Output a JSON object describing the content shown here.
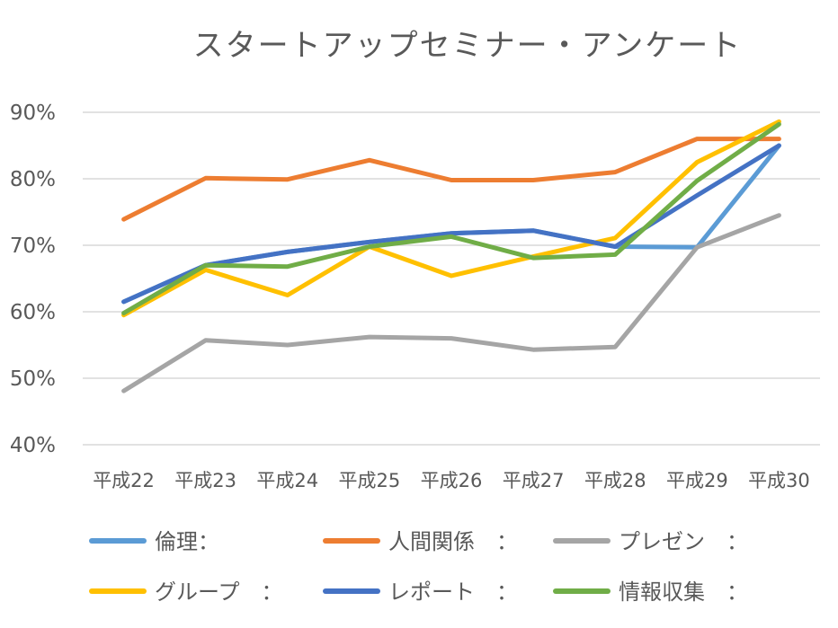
{
  "chart_data": {
    "type": "line",
    "title": "スタートアップセミナー・アンケート",
    "xlabel": "",
    "ylabel": "",
    "categories": [
      "平成22",
      "平成23",
      "平成24",
      "平成25",
      "平成26",
      "平成27",
      "平成28",
      "平成29",
      "平成30"
    ],
    "ylim": [
      0.4,
      0.9
    ],
    "yticks": [
      "40%",
      "50%",
      "60%",
      "70%",
      "80%",
      "90%"
    ],
    "grid": true,
    "legend_position": "bottom",
    "series": [
      {
        "name": "倫理",
        "legend_label": "倫理：",
        "color": "#5b9bd5",
        "values": [
          0.615,
          0.67,
          0.69,
          0.705,
          0.718,
          0.722,
          0.698,
          0.697,
          0.85
        ]
      },
      {
        "name": "人間関係",
        "legend_label": "人間関係　：",
        "color": "#ed7d31",
        "values": [
          0.739,
          0.801,
          0.799,
          0.828,
          0.798,
          0.798,
          0.81,
          0.86,
          0.86
        ]
      },
      {
        "name": "プレゼン",
        "legend_label": "プレゼン　：",
        "color": "#a5a5a5",
        "values": [
          0.481,
          0.557,
          0.55,
          0.562,
          0.56,
          0.543,
          0.547,
          0.697,
          0.745
        ]
      },
      {
        "name": "グループ",
        "legend_label": "グループ　：",
        "color": "#ffc000",
        "values": [
          0.595,
          0.663,
          0.625,
          0.698,
          0.654,
          0.683,
          0.711,
          0.825,
          0.886
        ]
      },
      {
        "name": "レポート",
        "legend_label": "レポート　：",
        "color": "#4472c4",
        "values": [
          0.615,
          0.67,
          0.69,
          0.705,
          0.718,
          0.722,
          0.698,
          0.775,
          0.85
        ]
      },
      {
        "name": "情報収集",
        "legend_label": "情報収集　：",
        "color": "#70ad47",
        "values": [
          0.598,
          0.67,
          0.668,
          0.698,
          0.713,
          0.681,
          0.686,
          0.797,
          0.882
        ]
      }
    ]
  }
}
